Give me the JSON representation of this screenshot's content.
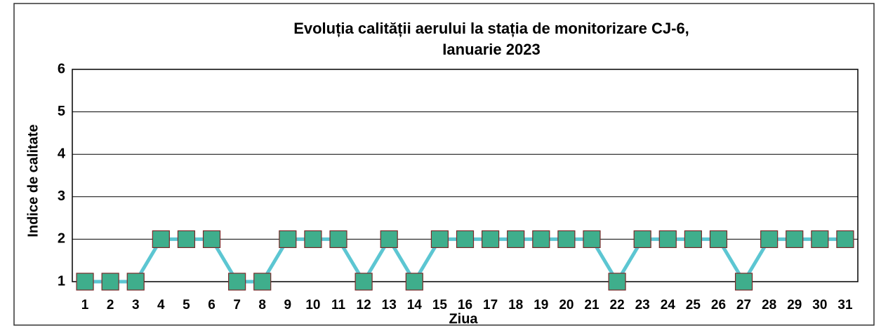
{
  "chart_data": {
    "type": "line",
    "title": [
      "Evoluția calității aerului la stația de monitorizare CJ-6,",
      "Ianuarie 2023"
    ],
    "x_label": "Ziua",
    "y_label": "Indice de calitate",
    "categories": [
      "1",
      "2",
      "3",
      "4",
      "5",
      "6",
      "7",
      "8",
      "9",
      "10",
      "11",
      "12",
      "13",
      "14",
      "15",
      "16",
      "17",
      "18",
      "19",
      "20",
      "21",
      "22",
      "23",
      "24",
      "25",
      "26",
      "27",
      "28",
      "29",
      "30",
      "31"
    ],
    "series": [
      {
        "name": "Indice de calitate",
        "color": "#5cc6d2",
        "marker_color": "#3fae8c",
        "marker_edge": "#7a2a2a",
        "values": [
          1,
          1,
          1,
          2,
          2,
          2,
          1,
          1,
          2,
          2,
          2,
          1,
          2,
          1,
          2,
          2,
          2,
          2,
          2,
          2,
          2,
          1,
          2,
          2,
          2,
          2,
          1,
          2,
          2,
          2,
          2
        ]
      }
    ],
    "ylim": [
      1,
      6
    ],
    "yticks": [
      1,
      2,
      3,
      4,
      5,
      6
    ],
    "grid": true
  }
}
